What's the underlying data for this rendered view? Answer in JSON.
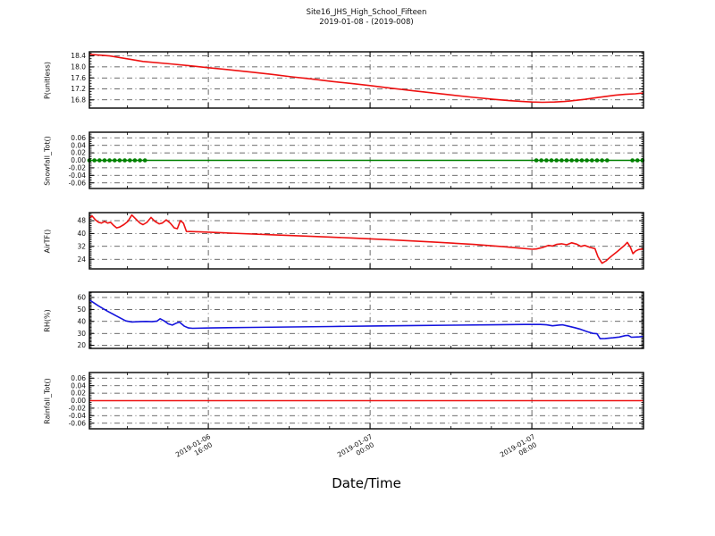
{
  "figure": {
    "title_line1": "Site16_JHS_High_School_Fifteen",
    "title_line2": "2019-01-08 - (2019-008)",
    "xlabel": "Date/Time",
    "background": "#ffffff",
    "grid_color": "#3a3a3a",
    "frame_color": "#000000"
  },
  "x_axis": {
    "label": "Date/Time",
    "domain_hours": [
      0,
      27.4
    ],
    "minor_step_hours": 2,
    "minor_offset_hours": 1.88,
    "major_ticks": [
      {
        "hours": 5.88,
        "date": "2019-01-06",
        "time": "16:00"
      },
      {
        "hours": 13.88,
        "date": "2019-01-07",
        "time": "00:00"
      },
      {
        "hours": 21.88,
        "date": "2019-01-07",
        "time": "08:00"
      }
    ]
  },
  "chart_data": [
    {
      "type": "line",
      "name": "pressure",
      "ylabel": "P(unitless)",
      "color": "#ee1111",
      "ylim": [
        16.5,
        18.55
      ],
      "ytick_values": [
        18.4,
        18.0,
        17.6,
        17.2,
        16.8
      ],
      "ytick_labels": [
        "18.4",
        "18.0",
        "17.6",
        "17.2",
        "16.8"
      ],
      "y_minor_step": 0.1,
      "points": [
        [
          0,
          18.46
        ],
        [
          1,
          18.4
        ],
        [
          2,
          18.28
        ],
        [
          2.65,
          18.2
        ],
        [
          4,
          18.11
        ],
        [
          5,
          18.04
        ],
        [
          5.88,
          17.97
        ],
        [
          7,
          17.89
        ],
        [
          8,
          17.81
        ],
        [
          9,
          17.73
        ],
        [
          10,
          17.64
        ],
        [
          11,
          17.56
        ],
        [
          12,
          17.47
        ],
        [
          13,
          17.39
        ],
        [
          13.88,
          17.32
        ],
        [
          15,
          17.22
        ],
        [
          16,
          17.13
        ],
        [
          17,
          17.05
        ],
        [
          18,
          16.97
        ],
        [
          19,
          16.89
        ],
        [
          20,
          16.82
        ],
        [
          20.8,
          16.77
        ],
        [
          21.4,
          16.74
        ],
        [
          21.9,
          16.72
        ],
        [
          22.4,
          16.71
        ],
        [
          23.0,
          16.72
        ],
        [
          23.5,
          16.74
        ],
        [
          24,
          16.78
        ],
        [
          24.5,
          16.82
        ],
        [
          25,
          16.87
        ],
        [
          25.5,
          16.92
        ],
        [
          26,
          16.97
        ],
        [
          26.5,
          17.0
        ],
        [
          27,
          17.02
        ],
        [
          27.4,
          17.05
        ]
      ]
    },
    {
      "type": "line",
      "name": "snowfall",
      "ylabel": "Snowfall_Tot()",
      "color": "#008000",
      "ylim": [
        -0.075,
        0.075
      ],
      "ytick_values": [
        0.06,
        0.04,
        0.02,
        0.0,
        -0.02,
        -0.04,
        -0.06
      ],
      "ytick_labels": [
        "0.06",
        "0.04",
        "0.02",
        "0.00",
        "-0.02",
        "-0.04",
        "-0.06"
      ],
      "y_minor_step": 0.005,
      "points": [
        [
          0,
          0
        ],
        [
          27.4,
          0
        ]
      ],
      "markers": {
        "color": "#008000",
        "value": 0,
        "radius": 2.3,
        "x_hours": [
          0,
          0.25,
          0.5,
          0.75,
          1.0,
          1.25,
          1.5,
          1.75,
          2.0,
          2.25,
          2.5,
          2.75,
          22.1,
          22.35,
          22.6,
          22.85,
          23.1,
          23.35,
          23.6,
          23.85,
          24.1,
          24.35,
          24.6,
          24.85,
          25.1,
          25.35,
          25.6,
          26.85,
          27.1,
          27.35
        ]
      }
    },
    {
      "type": "line",
      "name": "air-temp",
      "ylabel": "AirTF()",
      "color": "#ee1111",
      "ylim": [
        18,
        53
      ],
      "ytick_values": [
        48,
        40,
        32,
        24
      ],
      "ytick_labels": [
        "48",
        "40",
        "32",
        "24"
      ],
      "y_minor_step": 1,
      "points": [
        [
          0,
          49.5
        ],
        [
          0.13,
          51
        ],
        [
          0.3,
          48.5
        ],
        [
          0.45,
          47
        ],
        [
          0.6,
          46.5
        ],
        [
          0.75,
          47.5
        ],
        [
          0.9,
          46.5
        ],
        [
          1.05,
          47
        ],
        [
          1.2,
          45
        ],
        [
          1.35,
          43.5
        ],
        [
          1.5,
          44
        ],
        [
          1.7,
          45.5
        ],
        [
          1.9,
          47.5
        ],
        [
          2.1,
          51.5
        ],
        [
          2.3,
          49
        ],
        [
          2.5,
          46.5
        ],
        [
          2.65,
          45.5
        ],
        [
          2.85,
          47
        ],
        [
          3.05,
          50
        ],
        [
          3.25,
          47.5
        ],
        [
          3.45,
          46
        ],
        [
          3.6,
          46.5
        ],
        [
          3.8,
          48.5
        ],
        [
          4.0,
          46.5
        ],
        [
          4.2,
          43.5
        ],
        [
          4.35,
          43
        ],
        [
          4.5,
          48
        ],
        [
          4.65,
          46.5
        ],
        [
          4.8,
          41.3
        ],
        [
          5.5,
          41
        ],
        [
          7,
          40.2
        ],
        [
          9,
          39.2
        ],
        [
          11,
          38.2
        ],
        [
          13,
          37.2
        ],
        [
          15,
          36
        ],
        [
          17,
          34.7
        ],
        [
          19,
          33.2
        ],
        [
          20.5,
          31.8
        ],
        [
          21.9,
          30.2
        ],
        [
          22.1,
          30.4
        ],
        [
          22.4,
          31.3
        ],
        [
          22.7,
          32.6
        ],
        [
          22.9,
          32.2
        ],
        [
          23.1,
          33.2
        ],
        [
          23.35,
          33.6
        ],
        [
          23.6,
          33
        ],
        [
          23.85,
          34.2
        ],
        [
          24.1,
          33.4
        ],
        [
          24.3,
          32
        ],
        [
          24.5,
          32.6
        ],
        [
          24.75,
          31.4
        ],
        [
          25.0,
          30.6
        ],
        [
          25.15,
          25.5
        ],
        [
          25.35,
          21.5
        ],
        [
          25.55,
          23
        ],
        [
          25.8,
          25.8
        ],
        [
          26.1,
          28.8
        ],
        [
          26.45,
          32.5
        ],
        [
          26.6,
          34.5
        ],
        [
          26.75,
          31.5
        ],
        [
          26.88,
          27.5
        ],
        [
          27.0,
          29
        ],
        [
          27.15,
          30
        ],
        [
          27.4,
          30.5
        ]
      ]
    },
    {
      "type": "line",
      "name": "relative-humidity",
      "ylabel": "RH(%)",
      "color": "#1414dd",
      "ylim": [
        17.5,
        64.5
      ],
      "ytick_values": [
        60,
        50,
        40,
        30,
        20
      ],
      "ytick_labels": [
        "60",
        "50",
        "40",
        "30",
        "20"
      ],
      "y_minor_step": 1,
      "points": [
        [
          0,
          58
        ],
        [
          0.45,
          53
        ],
        [
          0.9,
          48.5
        ],
        [
          1.35,
          44.5
        ],
        [
          1.8,
          40.5
        ],
        [
          2.1,
          39.6
        ],
        [
          2.45,
          39.8
        ],
        [
          2.8,
          40
        ],
        [
          3.1,
          39.8
        ],
        [
          3.35,
          40.3
        ],
        [
          3.5,
          42.3
        ],
        [
          3.7,
          40.5
        ],
        [
          3.9,
          38
        ],
        [
          4.1,
          37
        ],
        [
          4.3,
          38.6
        ],
        [
          4.45,
          39.5
        ],
        [
          4.7,
          36
        ],
        [
          4.9,
          34.6
        ],
        [
          5.1,
          34.3
        ],
        [
          6,
          34.6
        ],
        [
          8,
          35
        ],
        [
          10,
          35.4
        ],
        [
          12,
          35.8
        ],
        [
          14,
          36.2
        ],
        [
          16,
          36.6
        ],
        [
          18,
          36.9
        ],
        [
          20,
          37.2
        ],
        [
          21.5,
          37.5
        ],
        [
          22.3,
          37.5
        ],
        [
          22.6,
          37.2
        ],
        [
          22.9,
          36.4
        ],
        [
          23.2,
          37
        ],
        [
          23.4,
          37.2
        ],
        [
          23.7,
          36
        ],
        [
          24,
          34.8
        ],
        [
          24.3,
          33.4
        ],
        [
          24.6,
          31.6
        ],
        [
          24.9,
          30
        ],
        [
          25.1,
          29.7
        ],
        [
          25.25,
          25.6
        ],
        [
          25.5,
          25.8
        ],
        [
          25.9,
          26.4
        ],
        [
          26.2,
          27
        ],
        [
          26.5,
          28.2
        ],
        [
          26.65,
          28.4
        ],
        [
          26.8,
          26.8
        ],
        [
          27.0,
          27
        ],
        [
          27.2,
          27.1
        ],
        [
          27.4,
          27.6
        ]
      ]
    },
    {
      "type": "line",
      "name": "rainfall",
      "ylabel": "Rainfall_Tot()",
      "color": "#ee1111",
      "ylim": [
        -0.075,
        0.075
      ],
      "ytick_values": [
        0.06,
        0.04,
        0.02,
        0.0,
        -0.02,
        -0.04,
        -0.06
      ],
      "ytick_labels": [
        "0.06",
        "0.04",
        "0.02",
        "0.00",
        "-0.02",
        "-0.04",
        "-0.06"
      ],
      "y_minor_step": 0.005,
      "points": [
        [
          0,
          0
        ],
        [
          27.4,
          0
        ]
      ]
    }
  ]
}
